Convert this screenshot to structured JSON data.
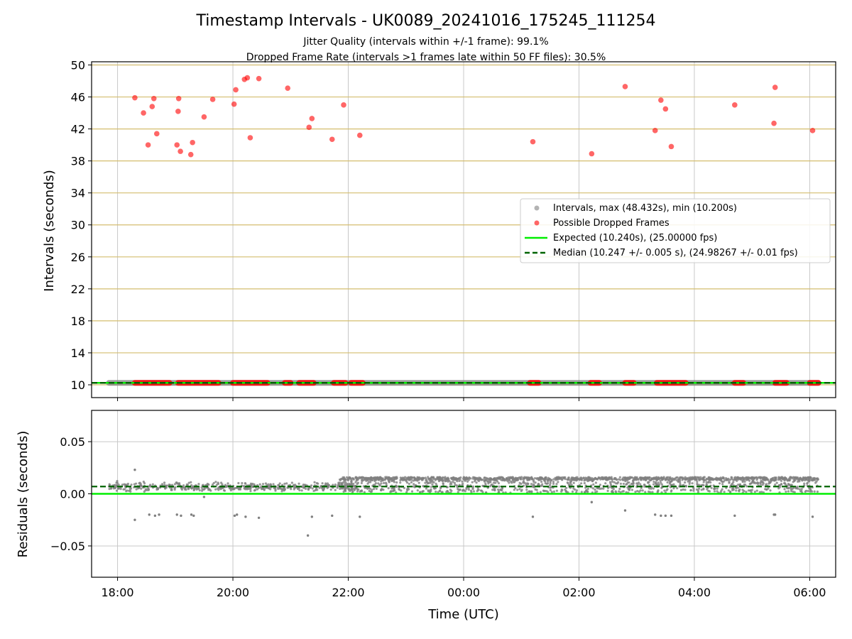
{
  "chart_data": [
    {
      "type": "scatter",
      "title": "Timestamp Intervals - UK0089_20241016_175245_111254",
      "subtitle_lines": [
        "Jitter Quality (intervals within +/-1 frame): 99.1%",
        "Dropped Frame Rate (intervals >1 frames late within 50 FF files): 30.5%"
      ],
      "ylabel": "Intervals (seconds)",
      "xlim": [
        -0.45,
        12.45
      ],
      "ylim": [
        8.4,
        50.4
      ],
      "yticks": [
        10,
        14,
        18,
        22,
        26,
        30,
        34,
        38,
        42,
        46,
        50
      ],
      "ytick_labels": [
        "10",
        "14",
        "18",
        "22",
        "26",
        "30",
        "34",
        "38",
        "42",
        "46",
        "50"
      ],
      "grid": true,
      "legend_position": "center-right",
      "legend": [
        "Intervals, max (48.432s), min (10.200s)",
        "Possible Dropped Frames",
        "Expected (10.240s), (25.00000 fps)",
        "Median (10.247 +/- 0.005 s), (24.98267 +/- 0.01 fps)"
      ],
      "expected_interval": 10.24,
      "median_interval": 10.247,
      "intervals_baseline": {
        "x_range": [
          -0.15,
          12.15
        ],
        "y": 10.24
      },
      "dropped_baseline_bands": [
        [
          0.3,
          0.9
        ],
        [
          1.05,
          1.75
        ],
        [
          2.0,
          2.6
        ],
        [
          2.9,
          3.0
        ],
        [
          3.15,
          3.4
        ],
        [
          3.75,
          3.95
        ],
        [
          4.05,
          4.25
        ],
        [
          7.15,
          7.3
        ],
        [
          8.2,
          8.35
        ],
        [
          8.8,
          8.95
        ],
        [
          9.35,
          9.85
        ],
        [
          10.7,
          10.85
        ],
        [
          11.4,
          11.6
        ],
        [
          12.0,
          12.15
        ]
      ],
      "dropped_frames": [
        {
          "x": 0.3,
          "y": 45.9
        },
        {
          "x": 0.45,
          "y": 44.0
        },
        {
          "x": 0.53,
          "y": 40.0
        },
        {
          "x": 0.6,
          "y": 44.8
        },
        {
          "x": 0.63,
          "y": 45.8
        },
        {
          "x": 0.68,
          "y": 41.4
        },
        {
          "x": 1.03,
          "y": 40.0
        },
        {
          "x": 1.05,
          "y": 44.2
        },
        {
          "x": 1.06,
          "y": 45.8
        },
        {
          "x": 1.09,
          "y": 39.2
        },
        {
          "x": 1.27,
          "y": 38.8
        },
        {
          "x": 1.3,
          "y": 40.3
        },
        {
          "x": 1.5,
          "y": 43.5
        },
        {
          "x": 1.65,
          "y": 45.7
        },
        {
          "x": 2.02,
          "y": 45.1
        },
        {
          "x": 2.05,
          "y": 46.9
        },
        {
          "x": 2.2,
          "y": 48.2
        },
        {
          "x": 2.25,
          "y": 48.4
        },
        {
          "x": 2.3,
          "y": 40.9
        },
        {
          "x": 2.45,
          "y": 48.3
        },
        {
          "x": 2.95,
          "y": 47.1
        },
        {
          "x": 3.32,
          "y": 42.2
        },
        {
          "x": 3.37,
          "y": 43.3
        },
        {
          "x": 3.72,
          "y": 40.7
        },
        {
          "x": 3.92,
          "y": 45.0
        },
        {
          "x": 4.2,
          "y": 41.2
        },
        {
          "x": 7.2,
          "y": 40.4
        },
        {
          "x": 8.22,
          "y": 38.9
        },
        {
          "x": 8.8,
          "y": 47.3
        },
        {
          "x": 9.32,
          "y": 41.8
        },
        {
          "x": 9.42,
          "y": 45.6
        },
        {
          "x": 9.5,
          "y": 44.5
        },
        {
          "x": 9.6,
          "y": 39.8
        },
        {
          "x": 10.7,
          "y": 45.0
        },
        {
          "x": 11.38,
          "y": 42.7
        },
        {
          "x": 11.4,
          "y": 47.2
        },
        {
          "x": 12.05,
          "y": 41.8
        }
      ]
    },
    {
      "type": "scatter",
      "ylabel": "Residuals (seconds)",
      "xlabel": "Time (UTC)",
      "xlim": [
        -0.45,
        12.45
      ],
      "ylim": [
        -0.08,
        0.08
      ],
      "xticks": [
        0,
        2,
        4,
        6,
        8,
        10,
        12
      ],
      "xtick_labels": [
        "18:00",
        "20:00",
        "22:00",
        "00:00",
        "02:00",
        "04:00",
        "06:00"
      ],
      "yticks": [
        -0.05,
        0.0,
        0.05
      ],
      "ytick_labels": [
        "−0.05",
        "0.00",
        "0.05"
      ],
      "grid": true,
      "expected_residual": 0.0,
      "median_residual": 0.007,
      "residual_clusters": [
        {
          "x_range": [
            -0.15,
            4.15
          ],
          "y_range": [
            0.002,
            0.011
          ]
        },
        {
          "x_range": [
            3.85,
            12.15
          ],
          "y_range": [
            0.001,
            0.016
          ]
        }
      ],
      "residual_outliers": [
        {
          "x": 0.3,
          "y": 0.023
        },
        {
          "x": 0.3,
          "y": -0.025
        },
        {
          "x": 0.55,
          "y": -0.02
        },
        {
          "x": 0.65,
          "y": -0.021
        },
        {
          "x": 0.72,
          "y": -0.02
        },
        {
          "x": 1.03,
          "y": -0.02
        },
        {
          "x": 1.1,
          "y": -0.021
        },
        {
          "x": 1.28,
          "y": -0.02
        },
        {
          "x": 1.32,
          "y": -0.021
        },
        {
          "x": 1.5,
          "y": -0.003
        },
        {
          "x": 2.03,
          "y": -0.021
        },
        {
          "x": 2.07,
          "y": -0.02
        },
        {
          "x": 2.22,
          "y": -0.022
        },
        {
          "x": 2.45,
          "y": -0.023
        },
        {
          "x": 3.3,
          "y": -0.04
        },
        {
          "x": 3.37,
          "y": -0.022
        },
        {
          "x": 3.72,
          "y": -0.021
        },
        {
          "x": 4.2,
          "y": -0.022
        },
        {
          "x": 7.2,
          "y": -0.022
        },
        {
          "x": 8.22,
          "y": -0.008
        },
        {
          "x": 8.8,
          "y": -0.016
        },
        {
          "x": 9.32,
          "y": -0.02
        },
        {
          "x": 9.42,
          "y": -0.021
        },
        {
          "x": 9.5,
          "y": -0.021
        },
        {
          "x": 9.6,
          "y": -0.021
        },
        {
          "x": 10.7,
          "y": -0.021
        },
        {
          "x": 11.38,
          "y": -0.02
        },
        {
          "x": 11.4,
          "y": -0.02
        },
        {
          "x": 12.05,
          "y": -0.022
        }
      ]
    }
  ],
  "colors": {
    "intervals": "#808080",
    "dropped": "#ff0000",
    "expected": "#00ee00",
    "median": "#006400",
    "major_grid": "#c8c8c8",
    "minor_grid": "#d4bd6f"
  }
}
